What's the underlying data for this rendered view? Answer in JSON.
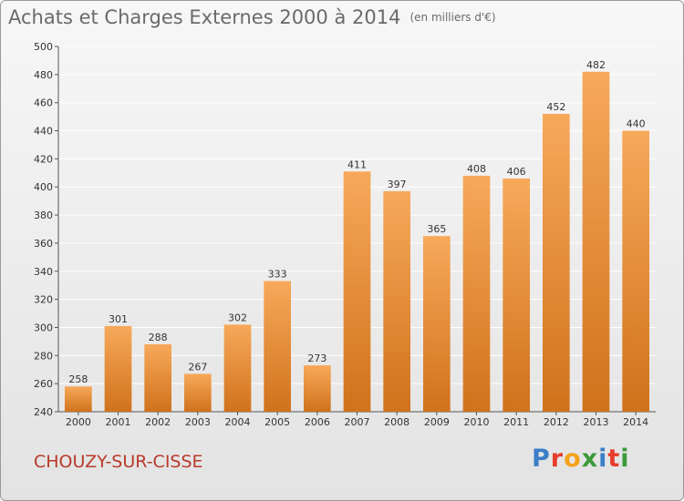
{
  "title": "Achats et Charges Externes 2000 à 2014",
  "subtitle": "(en milliers d'€)",
  "commune": "CHOUZY-SUR-CISSE",
  "logo": {
    "text": "Proxiti",
    "letters": [
      "P",
      "r",
      "o",
      "x",
      "i",
      "t",
      "i"
    ],
    "colors": [
      "#3a7fc8",
      "#e63c2c",
      "#f5a21b",
      "#3b9a3b",
      "#3a7fc8",
      "#e63c2c",
      "#3b9a3b"
    ]
  },
  "colors": {
    "bar_top": "#f7a95a",
    "bar_bottom": "#d0721c",
    "grid": "#ffffff",
    "axis": "#555555",
    "label": "#333333",
    "commune": "#b83a2a"
  },
  "chart_data": {
    "type": "bar",
    "title": "Achats et Charges Externes 2000 à 2014",
    "subtitle": "(en milliers d'€)",
    "xlabel": "",
    "ylabel": "",
    "categories": [
      "2000",
      "2001",
      "2002",
      "2003",
      "2004",
      "2005",
      "2006",
      "2007",
      "2008",
      "2009",
      "2010",
      "2011",
      "2012",
      "2013",
      "2014"
    ],
    "values": [
      258,
      301,
      288,
      267,
      302,
      333,
      273,
      411,
      397,
      365,
      408,
      406,
      452,
      482,
      440
    ],
    "ylim": [
      240,
      500
    ],
    "yticks": [
      240,
      260,
      280,
      300,
      320,
      340,
      360,
      380,
      400,
      420,
      440,
      460,
      480,
      500
    ],
    "grid": true,
    "legend": "none"
  }
}
